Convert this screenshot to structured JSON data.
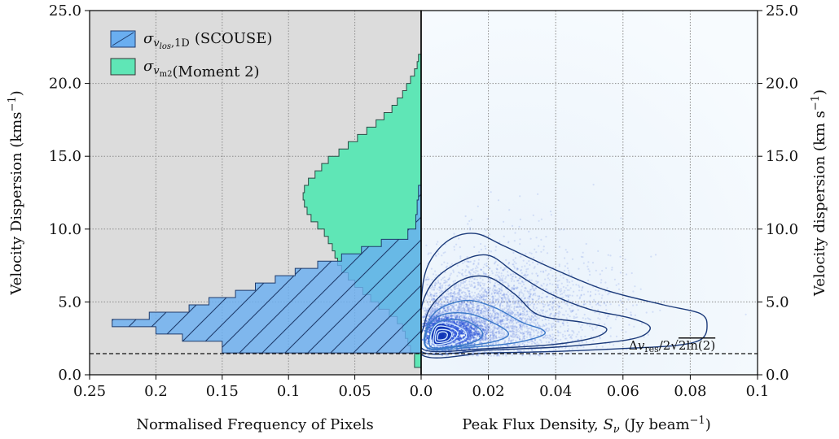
{
  "chart_data": [
    {
      "type": "area",
      "panel": "left",
      "xlabel": "Normalised Frequency of Pixels",
      "ylabel": "Velocity Dispersion (kms⁻¹)",
      "xlim": [
        0.25,
        0.0
      ],
      "ylim": [
        0,
        25
      ],
      "x_ticks": [
        "0.25",
        "0.2",
        "0.15",
        "0.1",
        "0.05",
        "0.0"
      ],
      "x_tick_values": [
        0.25,
        0.2,
        0.15,
        0.1,
        0.05,
        0.0
      ],
      "y_ticks": [
        "0.0",
        "5.0",
        "10.0",
        "15.0",
        "20.0",
        "25.0"
      ],
      "y_tick_values": [
        0,
        5,
        10,
        15,
        20,
        25
      ],
      "grid": true,
      "background_color": "#dcdcdc",
      "legend": {
        "placement": "upper-left",
        "entries": [
          {
            "label": "σ_v_los,1D (SCOUSE)",
            "main": "σ",
            "sub": "v",
            "subsub": "los",
            "subtail": ",1D",
            "text": "(SCOUSE)",
            "swatch_color": "#6aaef0",
            "hatched": true
          },
          {
            "label": "σ_v_m2 (Moment 2)",
            "main": "σ",
            "sub": "v",
            "subsub": "m2",
            "subtail": "",
            "text": "(Moment 2)",
            "swatch_color": "#5fe6b6",
            "hatched": false
          }
        ]
      },
      "series": [
        {
          "name": "σ_v_los,1D (SCOUSE)",
          "color": "#6aaef0",
          "hatched": true,
          "bins": [
            [
              1.5,
              1.8,
              0.15
            ],
            [
              1.8,
              2.3,
              0.15
            ],
            [
              2.3,
              2.8,
              0.18
            ],
            [
              2.8,
              3.3,
              0.2
            ],
            [
              3.3,
              3.8,
              0.233
            ],
            [
              3.8,
              4.3,
              0.205
            ],
            [
              4.3,
              4.8,
              0.175
            ],
            [
              4.8,
              5.3,
              0.16
            ],
            [
              5.3,
              5.8,
              0.14
            ],
            [
              5.8,
              6.3,
              0.125
            ],
            [
              6.3,
              6.8,
              0.11
            ],
            [
              6.8,
              7.3,
              0.095
            ],
            [
              7.3,
              7.8,
              0.078
            ],
            [
              7.8,
              8.3,
              0.06
            ],
            [
              8.3,
              8.8,
              0.045
            ],
            [
              8.8,
              9.3,
              0.03
            ],
            [
              9.3,
              10.0,
              0.01
            ],
            [
              10.0,
              11.0,
              0.004
            ],
            [
              11.0,
              12.0,
              0.003
            ],
            [
              12.0,
              13.0,
              0.002
            ]
          ]
        },
        {
          "name": "σ_v_m2 (Moment 2)",
          "color": "#5fe6b6",
          "hatched": false,
          "bins": [
            [
              0.5,
              1.5,
              0.005
            ],
            [
              1.5,
              2.0,
              0.008
            ],
            [
              2.0,
              2.5,
              0.01
            ],
            [
              2.5,
              3.0,
              0.012
            ],
            [
              3.0,
              3.5,
              0.014
            ],
            [
              3.5,
              4.0,
              0.018
            ],
            [
              4.0,
              4.5,
              0.024
            ],
            [
              4.5,
              5.0,
              0.032
            ],
            [
              5.0,
              5.5,
              0.038
            ],
            [
              5.5,
              6.0,
              0.044
            ],
            [
              6.0,
              6.5,
              0.05
            ],
            [
              6.5,
              7.0,
              0.055
            ],
            [
              7.0,
              7.5,
              0.06
            ],
            [
              7.5,
              8.0,
              0.063
            ],
            [
              8.0,
              8.5,
              0.065
            ],
            [
              8.5,
              9.0,
              0.067
            ],
            [
              9.0,
              9.5,
              0.07
            ],
            [
              9.5,
              10.0,
              0.073
            ],
            [
              10.0,
              10.5,
              0.078
            ],
            [
              10.5,
              11.0,
              0.083
            ],
            [
              11.0,
              11.5,
              0.086
            ],
            [
              11.5,
              12.0,
              0.088
            ],
            [
              12.0,
              12.5,
              0.089
            ],
            [
              12.5,
              13.0,
              0.088
            ],
            [
              13.0,
              13.5,
              0.085
            ],
            [
              13.5,
              14.0,
              0.08
            ],
            [
              14.0,
              14.5,
              0.075
            ],
            [
              14.5,
              15.0,
              0.07
            ],
            [
              15.0,
              15.5,
              0.062
            ],
            [
              15.5,
              16.0,
              0.055
            ],
            [
              16.0,
              16.5,
              0.048
            ],
            [
              16.5,
              17.0,
              0.041
            ],
            [
              17.0,
              17.5,
              0.034
            ],
            [
              17.5,
              18.0,
              0.028
            ],
            [
              18.0,
              18.5,
              0.022
            ],
            [
              18.5,
              19.0,
              0.018
            ],
            [
              19.0,
              19.5,
              0.014
            ],
            [
              19.5,
              20.0,
              0.011
            ],
            [
              20.0,
              20.5,
              0.008
            ],
            [
              20.5,
              21.0,
              0.005
            ],
            [
              21.0,
              21.5,
              0.003
            ],
            [
              21.5,
              22.0,
              0.002
            ]
          ]
        }
      ]
    },
    {
      "type": "heatmap",
      "panel": "right",
      "xlabel": "Peak Flux Density, Sν (Jy beam⁻¹)",
      "xlabel_parts": {
        "text": "Peak Flux Density, ",
        "symbol": "S",
        "sub": "ν",
        "units": " (Jy beam",
        "sup": "−1",
        "close": ")"
      },
      "ylabel": "Velocity dispersion (km s⁻¹)",
      "ylabel_parts": {
        "text": "Velocity dispersion (km s",
        "sup": "−1",
        "close": ")"
      },
      "xlim": [
        0.0,
        0.1
      ],
      "ylim": [
        0,
        25
      ],
      "x_ticks": [
        "0.0",
        "0.02",
        "0.04",
        "0.06",
        "0.08",
        "0.1"
      ],
      "x_tick_values": [
        0.0,
        0.02,
        0.04,
        0.06,
        0.08,
        0.1
      ],
      "y_ticks": [
        "0.0",
        "5.0",
        "10.0",
        "15.0",
        "20.0",
        "25.0"
      ],
      "y_tick_values": [
        0,
        5,
        10,
        15,
        20,
        25
      ],
      "grid": true,
      "density_peak": {
        "x": 0.006,
        "y": 2.7
      },
      "contour_color": "#1b3a7a",
      "point_color": "#2f57d9",
      "contours": [
        {
          "level": 1,
          "points": [
            [
              0.0,
              1.4
            ],
            [
              0.02,
              1.5
            ],
            [
              0.04,
              1.6
            ],
            [
              0.06,
              1.8
            ],
            [
              0.075,
              2.0
            ],
            [
              0.083,
              2.4
            ],
            [
              0.085,
              3.3
            ],
            [
              0.083,
              4.2
            ],
            [
              0.072,
              4.8
            ],
            [
              0.055,
              5.8
            ],
            [
              0.04,
              7.2
            ],
            [
              0.025,
              8.8
            ],
            [
              0.016,
              9.7
            ],
            [
              0.008,
              9.2
            ],
            [
              0.002,
              7.5
            ],
            [
              0.0,
              5.0
            ]
          ]
        },
        {
          "level": 2,
          "points": [
            [
              0.0,
              1.6
            ],
            [
              0.02,
              1.7
            ],
            [
              0.04,
              1.9
            ],
            [
              0.055,
              2.2
            ],
            [
              0.065,
              2.6
            ],
            [
              0.068,
              3.3
            ],
            [
              0.062,
              3.9
            ],
            [
              0.05,
              4.5
            ],
            [
              0.038,
              5.6
            ],
            [
              0.028,
              7.0
            ],
            [
              0.02,
              8.2
            ],
            [
              0.012,
              7.8
            ],
            [
              0.004,
              6.5
            ],
            [
              0.0,
              4.5
            ]
          ]
        },
        {
          "level": 3,
          "points": [
            [
              0.001,
              1.7
            ],
            [
              0.02,
              1.8
            ],
            [
              0.04,
              2.1
            ],
            [
              0.052,
              2.6
            ],
            [
              0.055,
              3.2
            ],
            [
              0.048,
              3.6
            ],
            [
              0.035,
              4.1
            ],
            [
              0.028,
              5.5
            ],
            [
              0.02,
              6.7
            ],
            [
              0.012,
              6.5
            ],
            [
              0.004,
              5.0
            ],
            [
              0.001,
              3.5
            ]
          ]
        },
        {
          "level": 4,
          "points": [
            [
              0.002,
              1.8
            ],
            [
              0.015,
              1.9
            ],
            [
              0.028,
              2.2
            ],
            [
              0.036,
              2.7
            ],
            [
              0.036,
              3.1
            ],
            [
              0.03,
              3.6
            ],
            [
              0.022,
              4.6
            ],
            [
              0.014,
              5.1
            ],
            [
              0.006,
              4.6
            ],
            [
              0.002,
              3.5
            ]
          ]
        },
        {
          "level": 5,
          "points": [
            [
              0.002,
              1.85
            ],
            [
              0.012,
              1.95
            ],
            [
              0.022,
              2.3
            ],
            [
              0.026,
              2.8
            ],
            [
              0.022,
              3.5
            ],
            [
              0.014,
              4.2
            ],
            [
              0.006,
              4.1
            ],
            [
              0.002,
              3.2
            ]
          ]
        },
        {
          "level": 6,
          "points": [
            [
              0.003,
              1.9
            ],
            [
              0.011,
              2.0
            ],
            [
              0.017,
              2.4
            ],
            [
              0.018,
              3.0
            ],
            [
              0.013,
              3.7
            ],
            [
              0.006,
              3.7
            ],
            [
              0.003,
              3.0
            ]
          ]
        },
        {
          "level": 7,
          "points": [
            [
              0.0035,
              2.0
            ],
            [
              0.009,
              2.1
            ],
            [
              0.013,
              2.5
            ],
            [
              0.013,
              3.0
            ],
            [
              0.009,
              3.5
            ],
            [
              0.005,
              3.5
            ],
            [
              0.003,
              2.8
            ]
          ]
        },
        {
          "level": 8,
          "points": [
            [
              0.004,
              2.1
            ],
            [
              0.008,
              2.2
            ],
            [
              0.0105,
              2.6
            ],
            [
              0.0105,
              3.0
            ],
            [
              0.0075,
              3.3
            ],
            [
              0.0048,
              3.3
            ],
            [
              0.0038,
              2.7
            ]
          ]
        },
        {
          "level": 9,
          "points": [
            [
              0.0045,
              2.25
            ],
            [
              0.0075,
              2.3
            ],
            [
              0.009,
              2.65
            ],
            [
              0.0088,
              2.95
            ],
            [
              0.007,
              3.1
            ],
            [
              0.005,
              3.05
            ],
            [
              0.0043,
              2.7
            ]
          ]
        },
        {
          "level": 10,
          "points": [
            [
              0.005,
              2.4
            ],
            [
              0.007,
              2.45
            ],
            [
              0.0078,
              2.7
            ],
            [
              0.0074,
              2.9
            ],
            [
              0.0062,
              2.95
            ],
            [
              0.0052,
              2.85
            ],
            [
              0.0049,
              2.6
            ]
          ]
        }
      ]
    }
  ],
  "reference_line": {
    "y": 1.45,
    "label": "Δv_res/2√(2ln(2))",
    "label_parts": {
      "delta": "Δ",
      "v": "v",
      "sub": "res",
      "mid": "/2",
      "root": "2ln(2)"
    }
  },
  "left_y_axis_title": "Velocity Dispersion (kms⁻¹)",
  "left_y_axis_title_parts": {
    "text": "Velocity Dispersion (kms",
    "sup": "−1",
    "close": ")"
  }
}
